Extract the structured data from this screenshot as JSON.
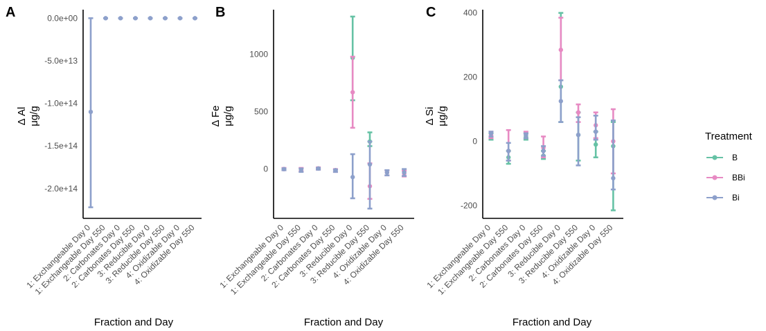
{
  "colors": {
    "B": "#66c2a5",
    "BBi": "#e78ac3",
    "Bi": "#8da0cb"
  },
  "legend": {
    "title": "Treatment",
    "items": [
      "B",
      "BBi",
      "Bi"
    ]
  },
  "chart_data": [
    {
      "type": "errorbar",
      "panel": "A",
      "ylabel_line1": "Δ Al",
      "ylabel_line2": "μg/g",
      "xlabel": "Fraction and Day",
      "categories": [
        "1: Exchangeable Day 0",
        "1: Exchangeable Day 550",
        "2: Carbonates Day 0",
        "2: Carbonates Day 550",
        "3: Reducible Day 0",
        "3: Reducible Day 550",
        "4: Oxidizable Day 0",
        "4: Oxidizable Day 550"
      ],
      "ylim": [
        -235000000000000.0,
        10000000000000.0
      ],
      "yticks": [
        {
          "v": 0,
          "label": "0.0e+00"
        },
        {
          "v": -50000000000000.0,
          "label": "-5.0e+13"
        },
        {
          "v": -100000000000000.0,
          "label": "-1.0e+14"
        },
        {
          "v": -150000000000000.0,
          "label": "-1.5e+14"
        },
        {
          "v": -200000000000000.0,
          "label": "-2.0e+14"
        }
      ],
      "series": [
        {
          "name": "Bi",
          "points": [
            {
              "x": 0,
              "mean": -110000000000000.0,
              "lo": -222000000000000.0,
              "hi": 0
            },
            {
              "x": 1,
              "mean": 0,
              "lo": 0,
              "hi": 0
            },
            {
              "x": 2,
              "mean": 0,
              "lo": 0,
              "hi": 0
            },
            {
              "x": 3,
              "mean": 0,
              "lo": 0,
              "hi": 0
            },
            {
              "x": 4,
              "mean": 0,
              "lo": 0,
              "hi": 0
            },
            {
              "x": 5,
              "mean": 0,
              "lo": 0,
              "hi": 0
            },
            {
              "x": 6,
              "mean": 0,
              "lo": 0,
              "hi": 0
            },
            {
              "x": 7,
              "mean": 0,
              "lo": 0,
              "hi": 0
            }
          ]
        }
      ]
    },
    {
      "type": "errorbar",
      "panel": "B",
      "ylabel_line1": "Δ Fe",
      "ylabel_line2": "μg/g",
      "xlabel": "Fraction and Day",
      "categories": [
        "1: Exchangeable Day 0",
        "1: Exchangeable Day 550",
        "2: Carbonates Day 0",
        "2: Carbonates Day 550",
        "3: Reducible Day 0",
        "3: Reducible Day 550",
        "4: Oxidizable Day 0",
        "4: Oxidizable Day 550"
      ],
      "ylim": [
        -430,
        1390
      ],
      "yticks": [
        {
          "v": 0,
          "label": "0"
        },
        {
          "v": 500,
          "label": "500"
        },
        {
          "v": 1000,
          "label": "1000"
        }
      ],
      "series": [
        {
          "name": "B",
          "points": [
            {
              "x": 4,
              "mean": 970,
              "lo": 600,
              "hi": 1330
            },
            {
              "x": 5,
              "mean": 240,
              "lo": 200,
              "hi": 320
            }
          ]
        },
        {
          "name": "BBi",
          "points": [
            {
              "x": 0,
              "mean": 0,
              "lo": -10,
              "hi": 10
            },
            {
              "x": 1,
              "mean": -5,
              "lo": -20,
              "hi": 10
            },
            {
              "x": 2,
              "mean": 5,
              "lo": -5,
              "hi": 15
            },
            {
              "x": 3,
              "mean": -10,
              "lo": -25,
              "hi": 0
            },
            {
              "x": 4,
              "mean": 670,
              "lo": 360,
              "hi": 980
            },
            {
              "x": 5,
              "mean": -150,
              "lo": -260,
              "hi": 50
            },
            {
              "x": 6,
              "mean": -30,
              "lo": -55,
              "hi": -10
            },
            {
              "x": 7,
              "mean": -40,
              "lo": -65,
              "hi": -15
            }
          ]
        },
        {
          "name": "Bi",
          "points": [
            {
              "x": 0,
              "mean": 0,
              "lo": -10,
              "hi": 5
            },
            {
              "x": 1,
              "mean": -5,
              "lo": -25,
              "hi": 5
            },
            {
              "x": 2,
              "mean": 5,
              "lo": -5,
              "hi": 10
            },
            {
              "x": 3,
              "mean": -10,
              "lo": -25,
              "hi": -5
            },
            {
              "x": 4,
              "mean": -70,
              "lo": -255,
              "hi": 130
            },
            {
              "x": 5,
              "mean": 40,
              "lo": -345,
              "hi": 240
            },
            {
              "x": 6,
              "mean": -30,
              "lo": -55,
              "hi": -10
            },
            {
              "x": 7,
              "mean": -30,
              "lo": -60,
              "hi": 0
            }
          ]
        }
      ]
    },
    {
      "type": "errorbar",
      "panel": "C",
      "ylabel_line1": "Δ Si",
      "ylabel_line2": "μg/g",
      "xlabel": "Fraction and Day",
      "categories": [
        "1: Exchangeable Day 0",
        "1: Exchangeable Day 550",
        "2: Carbonates Day 0",
        "2: Carbonates Day 550",
        "3: Reducible Day 0",
        "3: Reducible Day 550",
        "4: Oxidizable Day 0",
        "4: Oxidizable Day 550"
      ],
      "ylim": [
        -240,
        410
      ],
      "yticks": [
        {
          "v": -200,
          "label": "-200"
        },
        {
          "v": 0,
          "label": "0"
        },
        {
          "v": 200,
          "label": "200"
        },
        {
          "v": 400,
          "label": "400"
        }
      ],
      "series": [
        {
          "name": "B",
          "points": [
            {
              "x": 0,
              "mean": 15,
              "lo": 5,
              "hi": 25
            },
            {
              "x": 1,
              "mean": -50,
              "lo": -70,
              "hi": -30
            },
            {
              "x": 2,
              "mean": 15,
              "lo": 5,
              "hi": 25
            },
            {
              "x": 3,
              "mean": -45,
              "lo": -55,
              "hi": -30
            },
            {
              "x": 4,
              "mean": 170,
              "lo": 60,
              "hi": 400
            },
            {
              "x": 5,
              "mean": 20,
              "lo": -60,
              "hi": 90
            },
            {
              "x": 6,
              "mean": -10,
              "lo": -50,
              "hi": 30
            },
            {
              "x": 7,
              "mean": -15,
              "lo": -215,
              "hi": 60
            }
          ]
        },
        {
          "name": "BBi",
          "points": [
            {
              "x": 0,
              "mean": 20,
              "lo": 10,
              "hi": 30
            },
            {
              "x": 1,
              "mean": -30,
              "lo": -60,
              "hi": 35
            },
            {
              "x": 2,
              "mean": 20,
              "lo": 10,
              "hi": 30
            },
            {
              "x": 3,
              "mean": -20,
              "lo": -50,
              "hi": 15
            },
            {
              "x": 4,
              "mean": 285,
              "lo": 190,
              "hi": 385
            },
            {
              "x": 5,
              "mean": 90,
              "lo": 60,
              "hi": 115
            },
            {
              "x": 6,
              "mean": 50,
              "lo": 10,
              "hi": 90
            },
            {
              "x": 7,
              "mean": 0,
              "lo": -100,
              "hi": 100
            }
          ]
        },
        {
          "name": "Bi",
          "points": [
            {
              "x": 0,
              "mean": 25,
              "lo": 15,
              "hi": 30
            },
            {
              "x": 1,
              "mean": -30,
              "lo": -60,
              "hi": -5
            },
            {
              "x": 2,
              "mean": 20,
              "lo": 10,
              "hi": 25
            },
            {
              "x": 3,
              "mean": -30,
              "lo": -45,
              "hi": -15
            },
            {
              "x": 4,
              "mean": 125,
              "lo": 60,
              "hi": 190
            },
            {
              "x": 5,
              "mean": 20,
              "lo": -75,
              "hi": 75
            },
            {
              "x": 6,
              "mean": 30,
              "lo": 5,
              "hi": 80
            },
            {
              "x": 7,
              "mean": -115,
              "lo": -150,
              "hi": 65
            }
          ]
        }
      ]
    }
  ]
}
